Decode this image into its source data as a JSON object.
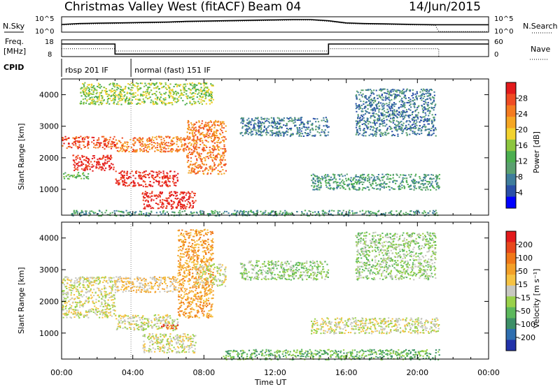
{
  "header": {
    "title": "Christmas Valley West (fitACF)",
    "beam": "Beam 04",
    "date": "14/Jun/2015"
  },
  "top_panels": {
    "nsky_label": "N.Sky",
    "nsearch_label": "N.Search",
    "freq_label_1": "Freq.",
    "freq_label_2": "[MHz]",
    "nave_label": "Nave",
    "cpid_label": "CPID",
    "noise_ticks_left": [
      "10^5",
      "10^0"
    ],
    "noise_ticks_right": [
      "10^5",
      "10^0"
    ],
    "freq_ticks": [
      "18",
      "8"
    ],
    "nave_ticks": [
      "60",
      "0"
    ],
    "cpid_programs": [
      {
        "name": "rbsp 201 IF",
        "start": 0.0,
        "end": 3.9
      },
      {
        "name": "normal (fast) 151 IF",
        "start": 3.9,
        "end": 24.0
      }
    ]
  },
  "chart_data": [
    {
      "type": "line",
      "panel": "noise",
      "x_units": "hours UT",
      "series": [
        {
          "name": "N.Sky",
          "style": "solid",
          "x": [
            0,
            1,
            2,
            3,
            4,
            5,
            6,
            7,
            8,
            9,
            10,
            11,
            12,
            13,
            14,
            15,
            16,
            17,
            18,
            19,
            20,
            21,
            21.2,
            24
          ],
          "y_log10": [
            2.5,
            2.8,
            2.9,
            3.0,
            3.1,
            3.2,
            3.3,
            3.5,
            3.6,
            3.7,
            3.8,
            3.9,
            4.0,
            4.1,
            4.1,
            3.7,
            3.0,
            2.8,
            2.7,
            2.6,
            2.5,
            2.4,
            2.4,
            2.4
          ]
        },
        {
          "name": "N.Search",
          "style": "dotted",
          "x": [
            0,
            1,
            2,
            3,
            4,
            5,
            6,
            7,
            8,
            9,
            10,
            11,
            12,
            13,
            14,
            15,
            16,
            17,
            18,
            19,
            20,
            21,
            21.2,
            24
          ],
          "y_log10": [
            2.3,
            2.6,
            2.7,
            2.8,
            2.9,
            3.0,
            3.1,
            3.3,
            3.4,
            3.5,
            3.6,
            3.7,
            3.8,
            3.9,
            3.9,
            3.5,
            2.8,
            2.6,
            2.5,
            2.4,
            2.3,
            2.2,
            0.2,
            0.2
          ]
        }
      ],
      "ylim_log10": [
        0,
        5
      ]
    },
    {
      "type": "line",
      "panel": "frequency",
      "series": [
        {
          "name": "Freq.",
          "style": "solid",
          "x": [
            0,
            3.0,
            3.0,
            15.0,
            15.0,
            24
          ],
          "y": [
            15.5,
            15.5,
            9.5,
            9.5,
            15.5,
            15.5
          ]
        },
        {
          "name": "Nave",
          "style": "dotted",
          "x": [
            0,
            3.0,
            3.0,
            15.0,
            15.0,
            21.2,
            21.2,
            24
          ],
          "y": [
            28,
            28,
            20,
            20,
            28,
            28,
            0,
            0
          ]
        }
      ],
      "freq_ylim": [
        8,
        18
      ],
      "nave_ylim": [
        0,
        60
      ]
    },
    {
      "type": "heatmap",
      "panel": "power",
      "xlabel": "Time UT",
      "ylabel": "Slant Range [km]",
      "x_ticks": [
        "00:00",
        "04:00",
        "08:00",
        "12:00",
        "16:00",
        "20:00",
        "00:00"
      ],
      "xlim_hours": [
        0,
        24
      ],
      "y_ticks": [
        1000,
        2000,
        3000,
        4000
      ],
      "ylim_km": [
        180,
        4500
      ],
      "colorbar": {
        "label": "Power [dB]",
        "ticks": [
          "4",
          "8",
          "12",
          "16",
          "20",
          "24",
          "28"
        ],
        "colors": [
          "#0000ff",
          "#2a4fa8",
          "#3f7d9c",
          "#5aa070",
          "#4caf50",
          "#8dc63f",
          "#f2d22e",
          "#f5a623",
          "#f47b20",
          "#ef4b23",
          "#e31a1c"
        ]
      },
      "scatter_regions": [
        {
          "t0": 0.0,
          "t1": 3.0,
          "r0": 2300,
          "r1": 2700,
          "level": 9
        },
        {
          "t0": 0.6,
          "t1": 2.9,
          "r0": 1600,
          "r1": 2100,
          "level": 10
        },
        {
          "t0": 0.0,
          "t1": 1.5,
          "r0": 1350,
          "r1": 1550,
          "level": 4
        },
        {
          "t0": 3.0,
          "t1": 6.5,
          "r0": 1100,
          "r1": 1600,
          "level": 10
        },
        {
          "t0": 4.5,
          "t1": 7.5,
          "r0": 400,
          "r1": 950,
          "level": 10
        },
        {
          "t0": 3.0,
          "t1": 7.0,
          "r0": 2200,
          "r1": 2700,
          "level": 8
        },
        {
          "t0": 7.0,
          "t1": 9.2,
          "r0": 1500,
          "r1": 3200,
          "level": 8
        },
        {
          "t0": 1.0,
          "t1": 8.5,
          "r0": 3700,
          "r1": 4400,
          "level": 5
        },
        {
          "t0": 10.0,
          "t1": 15.0,
          "r0": 2700,
          "r1": 3300,
          "level": 2
        },
        {
          "t0": 14.0,
          "t1": 21.2,
          "r0": 1000,
          "r1": 1500,
          "level": 3
        },
        {
          "t0": 16.5,
          "t1": 21.0,
          "r0": 2700,
          "r1": 4200,
          "level": 2
        },
        {
          "t0": 0.5,
          "t1": 21.2,
          "r0": 180,
          "r1": 350,
          "level": 3
        }
      ]
    },
    {
      "type": "heatmap",
      "panel": "velocity",
      "xlabel": "Time UT",
      "ylabel": "Slant Range [km]",
      "x_ticks": [
        "00:00",
        "04:00",
        "08:00",
        "12:00",
        "16:00",
        "20:00",
        "00:00"
      ],
      "xlim_hours": [
        0,
        24
      ],
      "y_ticks": [
        1000,
        2000,
        3000,
        4000
      ],
      "ylim_km": [
        180,
        4500
      ],
      "colorbar": {
        "label": "Velocity [m s⁻¹]",
        "ticks": [
          "200",
          "100",
          "50",
          "15",
          "-15",
          "-50",
          "-100",
          "-200"
        ],
        "colors": [
          "#2233aa",
          "#2f6fb0",
          "#3d8f67",
          "#5cb85c",
          "#99d14a",
          "#c8c8c0",
          "#f6c343",
          "#f3a028",
          "#f07818",
          "#e8481c",
          "#e31a1c"
        ]
      },
      "scatter_regions": [
        {
          "t0": 0.0,
          "t1": 3.0,
          "r0": 1500,
          "r1": 2800,
          "level": 5
        },
        {
          "t0": 3.0,
          "t1": 6.5,
          "r0": 1100,
          "r1": 1600,
          "level": 5
        },
        {
          "t0": 4.5,
          "t1": 7.5,
          "r0": 400,
          "r1": 1000,
          "level": 5
        },
        {
          "t0": 3.0,
          "t1": 6.5,
          "r0": 2300,
          "r1": 2800,
          "level": 6
        },
        {
          "t0": 6.5,
          "t1": 8.5,
          "r0": 1500,
          "r1": 4300,
          "level": 7
        },
        {
          "t0": 7.5,
          "t1": 9.2,
          "r0": 2500,
          "r1": 3200,
          "level": 5
        },
        {
          "t0": 5.5,
          "t1": 6.5,
          "r0": 1150,
          "r1": 1300,
          "level": 9
        },
        {
          "t0": 10.0,
          "t1": 15.0,
          "r0": 2700,
          "r1": 3300,
          "level": 4
        },
        {
          "t0": 14.0,
          "t1": 21.2,
          "r0": 1000,
          "r1": 1500,
          "level": 5
        },
        {
          "t0": 16.5,
          "t1": 21.0,
          "r0": 2700,
          "r1": 4200,
          "level": 4
        },
        {
          "t0": 9.0,
          "t1": 21.2,
          "r0": 180,
          "r1": 500,
          "level": 3
        }
      ]
    }
  ]
}
